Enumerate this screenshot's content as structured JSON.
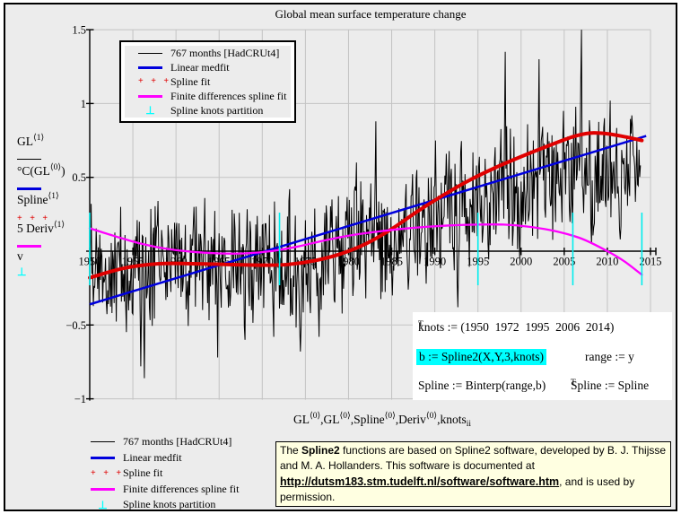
{
  "title": "Global mean surface temperature change",
  "colors": {
    "background": "#ececec",
    "grid": "#c3c3c3",
    "axis": "#000000",
    "series_black": "#000000",
    "linear_fit_blue": "#0000dd",
    "spline_fit_red": "#e00000",
    "finite_diff_magenta": "#ff00ff",
    "knots_cyan": "#00eeee",
    "highlight_cyan": "#00ffff",
    "note_yellow": "#ffffe1"
  },
  "legend": {
    "items": [
      {
        "label": "767 months [HadCRUt4]",
        "marker": "black-line"
      },
      {
        "label": "Linear medfit",
        "marker": "blue-line"
      },
      {
        "label": "Spline fit",
        "marker": "red-dots",
        "glyph": "+ + +"
      },
      {
        "label": "Finite differences spline fit",
        "marker": "magenta-line"
      },
      {
        "label": "Spline knots partition",
        "marker": "cyan-knot",
        "glyph": "⊥"
      }
    ]
  },
  "yaxis_stack": {
    "gl1_base": "GL",
    "gl1_sup": "⟨1⟩",
    "denom_base": "°C(GL",
    "denom_sup": "⟨0⟩",
    "denom_close": ")",
    "spline_base": "Spline",
    "spline_sup": "⟨1⟩",
    "deriv_base": "5 Deriv",
    "deriv_sup": "⟨1⟩",
    "v_label": "v",
    "knot_glyph": "⊥",
    "red_glyph": "+ + +"
  },
  "x_caption": {
    "parts": [
      {
        "base": "GL",
        "sup": "⟨0⟩"
      },
      {
        "base": ",GL",
        "sup": "⟨0⟩"
      },
      {
        "base": ",Spline",
        "sup": "⟨0⟩"
      },
      {
        "base": ",Deriv",
        "sup": "⟨0⟩"
      },
      {
        "base": ",knots",
        "sub": "ii"
      }
    ]
  },
  "math_region": {
    "knots_def": "knots := (1950  1972  1995  2006  2014)",
    "knots_sup": "T",
    "b_def": "b := Spline2(X,Y,3,knots)",
    "range_def": "range := y",
    "spline_def": "Spline := Binterp(range,b)",
    "spline_t_base": "Spline := Spline",
    "spline_t_sup": "T"
  },
  "note": {
    "pre": "The ",
    "bold1": "Spline2",
    "middle": " functions are based on Spline2 software, developed by B. J. Thijsse and M. A. Hollanders. This software is documented at ",
    "url": "http://dutsm183.stm.tudelft.nl/software/software.htm",
    "suffix": ", and is used by permission."
  },
  "chart_data": {
    "type": "line",
    "title": "Global mean surface temperature change",
    "xlabel": "GL⟨0⟩,GL⟨0⟩,Spline⟨0⟩,Deriv⟨0⟩,knots_ii",
    "ylabel": "GL⟨1⟩/°C(GL⟨0⟩), Spline⟨1⟩, 5 Deriv⟨1⟩, v",
    "xlim": [
      1950,
      2015
    ],
    "ylim": [
      -1,
      1.5
    ],
    "grid": true,
    "legend_position": "top-left box; repeated lower-left",
    "x_ticks": [
      1950,
      1955,
      1960,
      1965,
      1970,
      1975,
      1980,
      1985,
      1990,
      1995,
      2000,
      2005,
      2010,
      2015
    ],
    "y_ticks": [
      {
        "v": 1.5,
        "label": "1.5"
      },
      {
        "v": 1.0,
        "label": "1"
      },
      {
        "v": 0.5,
        "label": "0.5"
      },
      {
        "v": 0.0,
        "label": ""
      },
      {
        "v": -0.5,
        "label": "−0.5"
      },
      {
        "v": -1.0,
        "label": "−1"
      }
    ],
    "series": [
      {
        "name": "767 months [HadCRUt4]",
        "type": "noisy_monthly",
        "color_key": "series_black",
        "stroke_width": 1,
        "months": 767,
        "start_year": 1950,
        "trend_anchors": [
          [
            1950,
            -0.1
          ],
          [
            1954,
            -0.13
          ],
          [
            1958,
            -0.09
          ],
          [
            1962,
            -0.1
          ],
          [
            1966,
            -0.12
          ],
          [
            1970,
            -0.06
          ],
          [
            1974,
            -0.12
          ],
          [
            1978,
            0.0
          ],
          [
            1982,
            0.08
          ],
          [
            1986,
            0.12
          ],
          [
            1990,
            0.25
          ],
          [
            1994,
            0.28
          ],
          [
            1998,
            0.4
          ],
          [
            2002,
            0.48
          ],
          [
            2006,
            0.54
          ],
          [
            2010,
            0.55
          ],
          [
            2013.9,
            0.56
          ]
        ],
        "noise": {
          "w1": 0.62,
          "w2": 0.34,
          "seed": 987654321
        },
        "spikes": [
          [
            1950.2,
            0.32
          ],
          [
            1953.6,
            0.3
          ],
          [
            1955.9,
            -0.78
          ],
          [
            1956.3,
            -0.86
          ],
          [
            1957.9,
            0.34
          ],
          [
            1962.1,
            0.3
          ],
          [
            1963.3,
            0.36
          ],
          [
            1964.8,
            -0.72
          ],
          [
            1966.5,
            0.28
          ],
          [
            1968.0,
            -0.6
          ],
          [
            1971.3,
            -0.58
          ],
          [
            1973.2,
            0.42
          ],
          [
            1974.4,
            -0.68
          ],
          [
            1976.6,
            -0.58
          ],
          [
            1978.1,
            0.35
          ],
          [
            1980.9,
            0.6
          ],
          [
            1983.2,
            0.88
          ],
          [
            1985.1,
            -0.3
          ],
          [
            1987.9,
            0.55
          ],
          [
            1989.0,
            -0.22
          ],
          [
            1990.1,
            0.75
          ],
          [
            1992.7,
            -0.38
          ],
          [
            1994.8,
            0.58
          ],
          [
            1996.2,
            0.05
          ],
          [
            1998.2,
            1.35
          ],
          [
            1999.8,
            -0.05
          ],
          [
            2002.1,
            1.3
          ],
          [
            2004.9,
            0.95
          ],
          [
            2007.0,
            1.5
          ],
          [
            2008.2,
            0.05
          ],
          [
            2010.3,
            1.02
          ],
          [
            2011.5,
            0.08
          ],
          [
            2012.8,
            0.92
          ]
        ]
      },
      {
        "name": "Linear medfit",
        "type": "line",
        "color_key": "linear_fit_blue",
        "stroke_width": 2.5,
        "points": [
          [
            1950,
            -0.36
          ],
          [
            2014.5,
            0.78
          ]
        ]
      },
      {
        "name": "Spline fit",
        "type": "smooth",
        "color_key": "spline_fit_red",
        "stroke_width": 4,
        "points": [
          [
            1950,
            -0.18
          ],
          [
            1954,
            -0.115
          ],
          [
            1958,
            -0.085
          ],
          [
            1962,
            -0.085
          ],
          [
            1966,
            -0.09
          ],
          [
            1970,
            -0.095
          ],
          [
            1973,
            -0.09
          ],
          [
            1976,
            -0.065
          ],
          [
            1979,
            -0.02
          ],
          [
            1982,
            0.05
          ],
          [
            1985,
            0.15
          ],
          [
            1988,
            0.27
          ],
          [
            1991,
            0.38
          ],
          [
            1994,
            0.48
          ],
          [
            1997,
            0.565
          ],
          [
            2000,
            0.64
          ],
          [
            2003,
            0.71
          ],
          [
            2006,
            0.775
          ],
          [
            2008,
            0.8
          ],
          [
            2010,
            0.795
          ],
          [
            2012,
            0.775
          ],
          [
            2014,
            0.75
          ]
        ]
      },
      {
        "name": "Finite differences spline fit",
        "type": "smooth",
        "color_key": "finite_diff_magenta",
        "stroke_width": 2.3,
        "points": [
          [
            1950,
            0.155
          ],
          [
            1953,
            0.1
          ],
          [
            1956,
            0.05
          ],
          [
            1959,
            0.015
          ],
          [
            1962,
            -0.005
          ],
          [
            1965,
            -0.015
          ],
          [
            1968,
            -0.015
          ],
          [
            1971,
            0.0
          ],
          [
            1974,
            0.03
          ],
          [
            1977,
            0.07
          ],
          [
            1980,
            0.105
          ],
          [
            1983,
            0.13
          ],
          [
            1986,
            0.15
          ],
          [
            1989,
            0.165
          ],
          [
            1992,
            0.175
          ],
          [
            1995,
            0.18
          ],
          [
            1998,
            0.18
          ],
          [
            2001,
            0.165
          ],
          [
            2004,
            0.135
          ],
          [
            2007,
            0.085
          ],
          [
            2010,
            0.0
          ],
          [
            2012,
            -0.07
          ],
          [
            2014,
            -0.16
          ]
        ]
      },
      {
        "name": "Spline knots partition",
        "type": "knots",
        "color_key": "knots_cyan",
        "stroke_width": 1.6,
        "years": [
          1950,
          1972,
          1995,
          2006,
          2014
        ],
        "y_extent": [
          -0.231,
          0.261
        ]
      }
    ]
  }
}
